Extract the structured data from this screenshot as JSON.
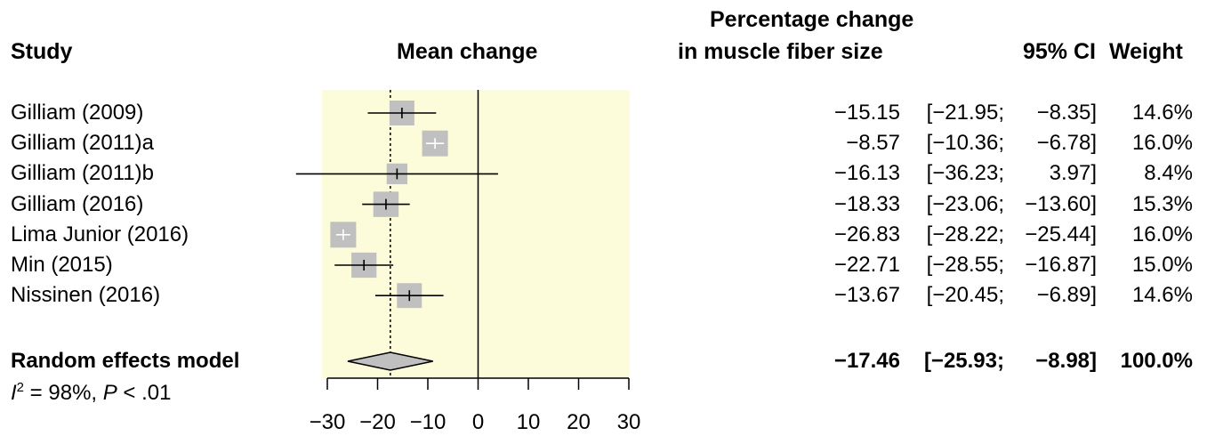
{
  "chart_data": {
    "type": "forest",
    "headers": {
      "study": "Study",
      "mean_change": "Mean change",
      "pct_line1": "Percentage change",
      "pct_line2": "in muscle fiber size",
      "ci": "95% CI",
      "weight": "Weight"
    },
    "studies": [
      {
        "name": "Gilliam (2009)",
        "est": "−15.15",
        "lo": "[−21.95;",
        "hi": "−8.35]",
        "w": "14.6%",
        "v": -15.15,
        "l": -21.95,
        "h": -8.35,
        "wt": 14.6
      },
      {
        "name": "Gilliam (2011)a",
        "est": "−8.57",
        "lo": "[−10.36;",
        "hi": "−6.78]",
        "w": "16.0%",
        "v": -8.57,
        "l": -10.36,
        "h": -6.78,
        "wt": 16.0
      },
      {
        "name": "Gilliam (2011)b",
        "est": "−16.13",
        "lo": "[−36.23;",
        "hi": "3.97]",
        "w": "8.4%",
        "v": -16.13,
        "l": -36.23,
        "h": 3.97,
        "wt": 8.4
      },
      {
        "name": "Gilliam (2016)",
        "est": "−18.33",
        "lo": "[−23.06;",
        "hi": "−13.60]",
        "w": "15.3%",
        "v": -18.33,
        "l": -23.06,
        "h": -13.6,
        "wt": 15.3
      },
      {
        "name": "Lima Junior (2016)",
        "est": "−26.83",
        "lo": "[−28.22;",
        "hi": "−25.44]",
        "w": "16.0%",
        "v": -26.83,
        "l": -28.22,
        "h": -25.44,
        "wt": 16.0
      },
      {
        "name": "Min (2015)",
        "est": "−22.71",
        "lo": "[−28.55;",
        "hi": "−16.87]",
        "w": "15.0%",
        "v": -22.71,
        "l": -28.55,
        "h": -16.87,
        "wt": 15.0
      },
      {
        "name": "Nissinen (2016)",
        "est": "−13.67",
        "lo": "[−20.45;",
        "hi": "−6.89]",
        "w": "14.6%",
        "v": -13.67,
        "l": -20.45,
        "h": -6.89,
        "wt": 14.6
      }
    ],
    "model": {
      "name": "Random effects model",
      "est": "−17.46",
      "lo": "[−25.93;",
      "hi": "−8.98]",
      "w": "100.0%",
      "v": -17.46,
      "l": -25.93,
      "h": -8.98
    },
    "heterogeneity": {
      "i_label": "I",
      "i_sup": "2",
      "i_value": " = 98%, ",
      "p_label": "P",
      "p_value": " < .01"
    },
    "x_ticks": [
      -30,
      -20,
      -10,
      0,
      10,
      20,
      30
    ],
    "x_tick_labels": [
      "−30",
      "−20",
      "−10",
      "0",
      "10",
      "20",
      "30"
    ],
    "xlim": [
      -30,
      30
    ],
    "colors": {
      "panel": "#fcfbda",
      "square": "#c0c0c0",
      "diamond": "#c0c0c0"
    }
  }
}
